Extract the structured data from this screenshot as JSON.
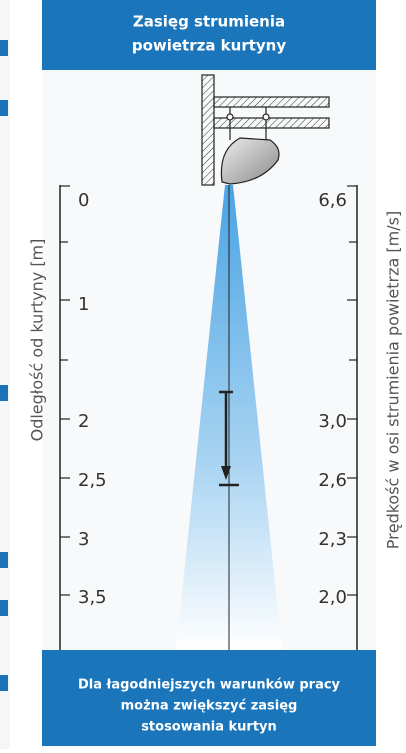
{
  "header": {
    "lines": [
      "Zasięg strumienia",
      "powietrza kurtyny"
    ]
  },
  "left_axis": {
    "label": "Odległość od kurtyny [m]",
    "labels": [
      "0",
      "1",
      "2",
      "2,5",
      "3",
      "3,5"
    ]
  },
  "right_axis": {
    "label": "Prędkość w osi strumienia powietrza [m/s]",
    "labels": [
      "6,6",
      "3,0",
      "2,6",
      "2,3",
      "2,0"
    ]
  },
  "footer": {
    "lines": [
      "Dla łagodniejszych warunków pracy",
      "można zwiększyć zasięg",
      "stosowania kurtyn"
    ]
  }
}
